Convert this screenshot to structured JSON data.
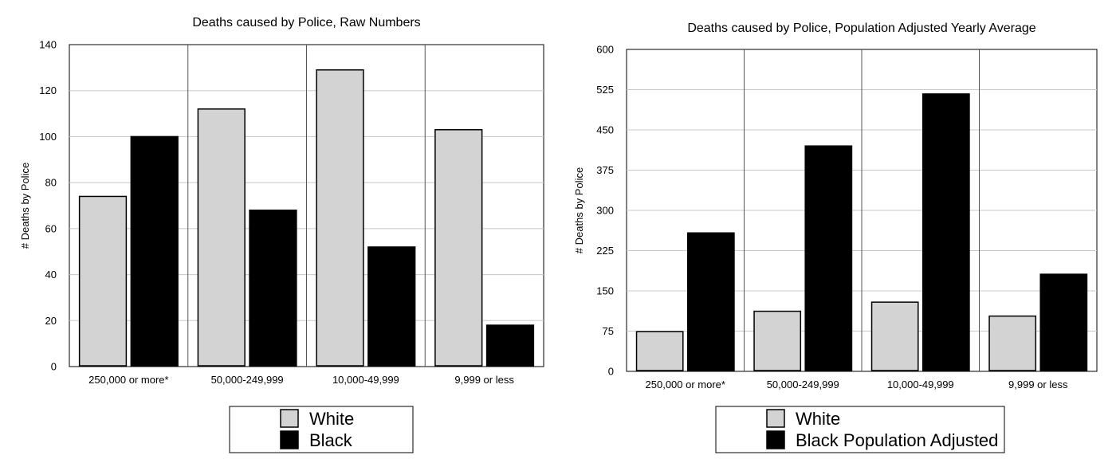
{
  "chart_data": [
    {
      "type": "bar",
      "title": "Deaths caused by Police, Raw Numbers",
      "xlabel": "",
      "ylabel": "# Deaths by Police",
      "ylim": [
        0,
        140
      ],
      "yticks": [
        0,
        20,
        40,
        60,
        80,
        100,
        120,
        140
      ],
      "grid": true,
      "legend_position": "bottom-center",
      "categories": [
        "250,000 or more*",
        "50,000-249,999",
        "10,000-49,999",
        "9,999 or less"
      ],
      "series": [
        {
          "name": "White",
          "color": "#d3d3d3",
          "values": [
            74,
            112,
            129,
            103
          ]
        },
        {
          "name": "Black",
          "color": "#000000",
          "values": [
            100,
            68,
            52,
            18
          ]
        }
      ]
    },
    {
      "type": "bar",
      "title": "Deaths caused by Police, Population Adjusted Yearly Average",
      "xlabel": "",
      "ylabel": "# Deaths by Police",
      "ylim": [
        0,
        600
      ],
      "yticks": [
        0,
        75,
        150,
        225,
        300,
        375,
        450,
        525,
        600
      ],
      "grid": true,
      "legend_position": "bottom-center",
      "categories": [
        "250,000 or more*",
        "50,000-249,999",
        "10,000-49,999",
        "9,999 or less"
      ],
      "series": [
        {
          "name": "White",
          "color": "#d3d3d3",
          "values": [
            74,
            112,
            129,
            103
          ]
        },
        {
          "name": "Black Population Adjusted",
          "color": "#000000",
          "values": [
            258,
            420,
            517,
            181
          ]
        }
      ]
    }
  ]
}
